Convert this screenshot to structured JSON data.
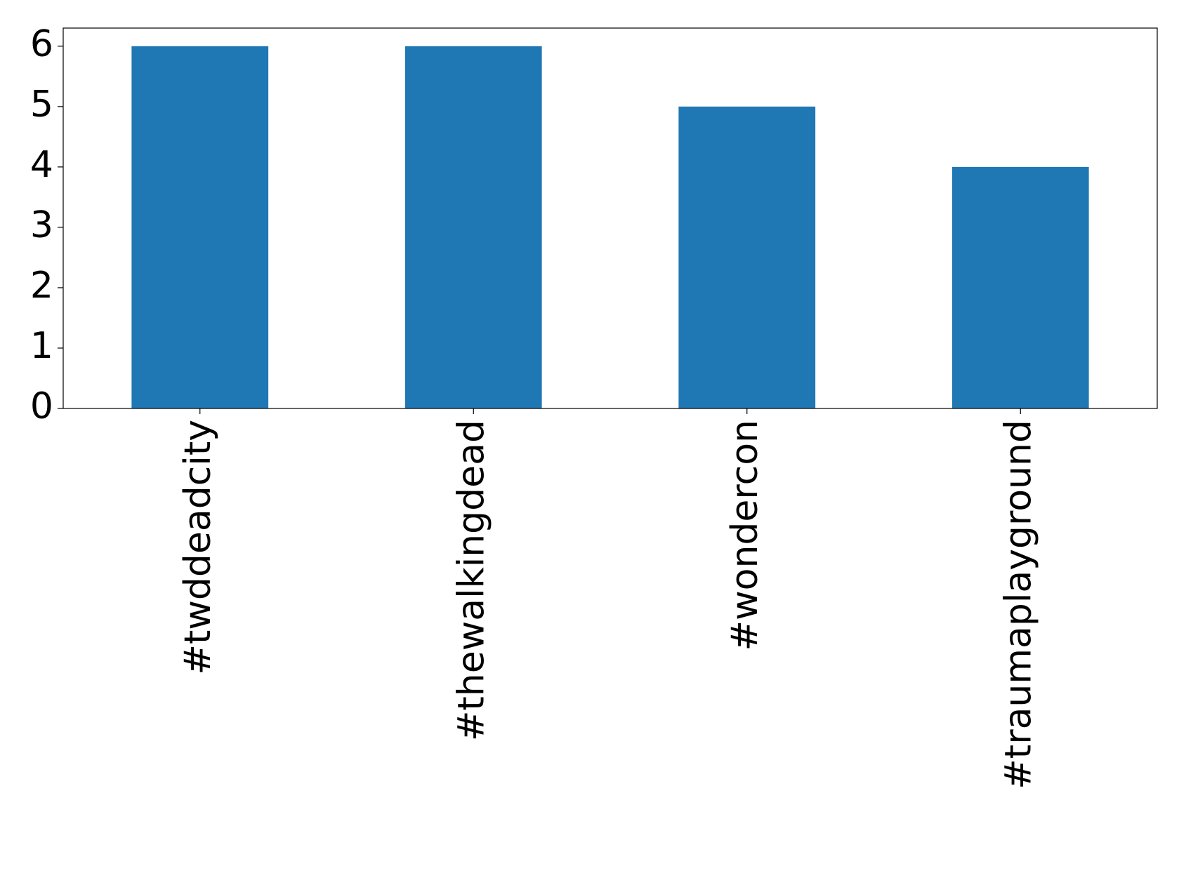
{
  "chart_data": {
    "type": "bar",
    "categories": [
      "#twddeadcity",
      "#thewalkingdead",
      "#wondercon",
      "#traumaplayground"
    ],
    "values": [
      6,
      6,
      5,
      4
    ],
    "color": "#1f77b4",
    "ylim": [
      0,
      6.3
    ],
    "yticks": [
      0,
      1,
      2,
      3,
      4,
      5,
      6
    ],
    "grid": false
  }
}
